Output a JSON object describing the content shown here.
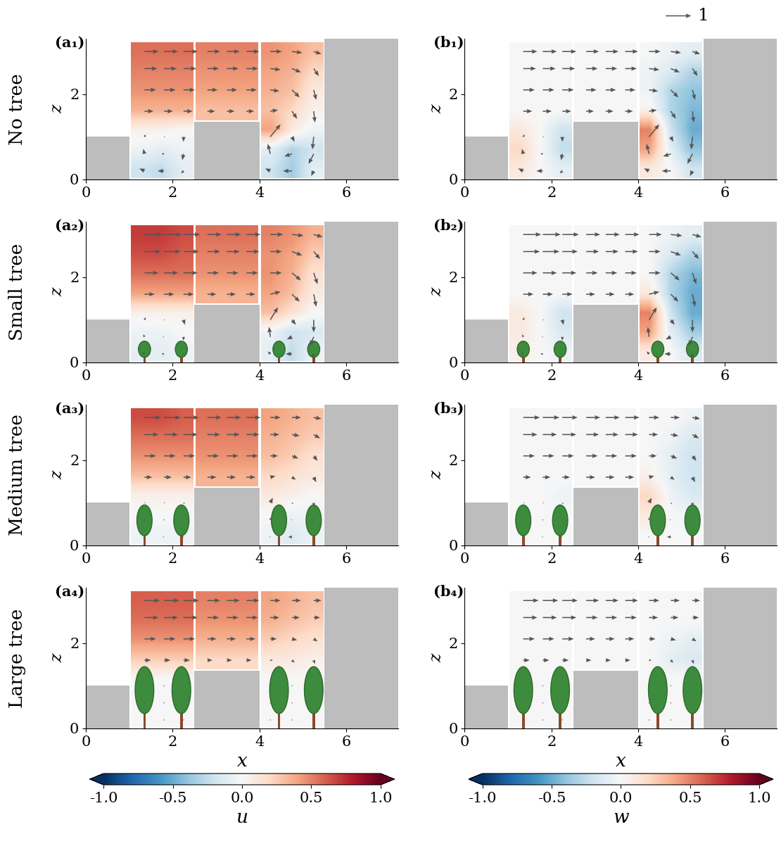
{
  "chart_data": {
    "type": "heatmap",
    "xlim": [
      0,
      7.2
    ],
    "ylim": [
      0,
      3.3
    ],
    "xticks": [
      0,
      2,
      4,
      6
    ],
    "yticks": [
      0,
      2
    ],
    "xlabel": "x",
    "ylabel": "z",
    "x": [
      1.35,
      1.8,
      2.25,
      2.8,
      3.25,
      3.7,
      4.25,
      4.75,
      5.25
    ],
    "z": [
      0.2,
      0.6,
      1.0,
      1.6,
      2.1,
      2.6,
      3.0
    ],
    "buildings": [
      {
        "x": [
          0,
          1.0
        ],
        "height": 1.0
      },
      {
        "x": [
          2.5,
          4.0
        ],
        "height": 1.35
      },
      {
        "x": [
          5.5,
          7.2
        ],
        "height": 3.3
      }
    ],
    "tree_x": [
      1.35,
      2.2,
      4.45,
      5.25
    ],
    "quiver_key": 1,
    "colorbars": [
      {
        "label": "u",
        "range": [
          -1.0,
          1.0
        ],
        "ticks": [
          -1.0,
          -0.5,
          0.0,
          0.5,
          1.0
        ]
      },
      {
        "label": "w",
        "range": [
          -1.0,
          1.0
        ],
        "ticks": [
          -1.0,
          -0.5,
          0.0,
          0.5,
          1.0
        ]
      }
    ],
    "rows": [
      {
        "label": "No tree",
        "panels": [
          "(a₁)",
          "(b₁)"
        ],
        "tree_height": null,
        "u": [
          [
            -0.2,
            -0.25,
            -0.1,
            null,
            null,
            null,
            -0.2,
            -0.35,
            -0.1
          ],
          [
            -0.05,
            -0.1,
            -0.05,
            null,
            null,
            null,
            -0.1,
            -0.3,
            -0.2
          ],
          [
            0.05,
            0.05,
            0.0,
            null,
            null,
            null,
            0.4,
            0.1,
            -0.05
          ],
          [
            0.35,
            0.35,
            0.35,
            0.3,
            0.3,
            0.3,
            0.3,
            0.2,
            0.05
          ],
          [
            0.45,
            0.45,
            0.45,
            0.4,
            0.4,
            0.4,
            0.35,
            0.3,
            0.1
          ],
          [
            0.5,
            0.5,
            0.5,
            0.45,
            0.45,
            0.45,
            0.4,
            0.35,
            0.2
          ],
          [
            0.55,
            0.55,
            0.55,
            0.5,
            0.5,
            0.5,
            0.45,
            0.4,
            0.3
          ]
        ],
        "w": [
          [
            0.1,
            0.0,
            -0.1,
            null,
            null,
            null,
            0.1,
            0.0,
            -0.2
          ],
          [
            0.2,
            0.0,
            -0.25,
            null,
            null,
            null,
            0.4,
            -0.1,
            -0.4
          ],
          [
            0.1,
            0.0,
            -0.2,
            null,
            null,
            null,
            0.5,
            -0.2,
            -0.5
          ],
          [
            0.0,
            0.0,
            0.0,
            0.0,
            0.0,
            0.0,
            0.05,
            -0.3,
            -0.45
          ],
          [
            0.0,
            0.0,
            0.0,
            0.0,
            0.0,
            0.0,
            -0.05,
            -0.3,
            -0.4
          ],
          [
            0.0,
            0.0,
            0.0,
            0.0,
            0.0,
            0.0,
            -0.05,
            -0.15,
            -0.3
          ],
          [
            0.0,
            0.0,
            0.0,
            0.0,
            0.0,
            0.0,
            0.0,
            -0.05,
            -0.1
          ]
        ]
      },
      {
        "label": "Small tree",
        "panels": [
          "(a₂)",
          "(b₂)"
        ],
        "tree_height": 0.5,
        "u": [
          [
            -0.1,
            -0.1,
            -0.05,
            null,
            null,
            null,
            -0.1,
            -0.25,
            -0.05
          ],
          [
            -0.05,
            -0.05,
            0.0,
            null,
            null,
            null,
            -0.05,
            -0.2,
            -0.15
          ],
          [
            0.05,
            0.05,
            0.05,
            null,
            null,
            null,
            0.3,
            0.15,
            0.0
          ],
          [
            0.4,
            0.4,
            0.4,
            0.35,
            0.35,
            0.35,
            0.4,
            0.3,
            0.1
          ],
          [
            0.55,
            0.55,
            0.55,
            0.45,
            0.45,
            0.45,
            0.45,
            0.35,
            0.15
          ],
          [
            0.65,
            0.65,
            0.6,
            0.5,
            0.5,
            0.5,
            0.45,
            0.4,
            0.25
          ],
          [
            0.7,
            0.7,
            0.65,
            0.55,
            0.55,
            0.55,
            0.5,
            0.45,
            0.35
          ]
        ],
        "w": [
          [
            0.05,
            0.0,
            -0.05,
            null,
            null,
            null,
            0.1,
            0.0,
            -0.15
          ],
          [
            0.1,
            0.0,
            -0.15,
            null,
            null,
            null,
            0.4,
            -0.1,
            -0.35
          ],
          [
            0.1,
            0.0,
            -0.2,
            null,
            null,
            null,
            0.5,
            -0.2,
            -0.5
          ],
          [
            0.0,
            0.0,
            0.0,
            0.0,
            0.0,
            0.0,
            0.1,
            -0.3,
            -0.5
          ],
          [
            0.0,
            0.0,
            0.0,
            0.0,
            0.0,
            0.0,
            0.0,
            -0.3,
            -0.45
          ],
          [
            0.0,
            0.0,
            0.0,
            0.0,
            0.0,
            0.0,
            0.0,
            -0.15,
            -0.3
          ],
          [
            0.0,
            0.0,
            0.0,
            0.0,
            0.0,
            0.0,
            0.0,
            -0.05,
            -0.1
          ]
        ]
      },
      {
        "label": "Medium tree",
        "panels": [
          "(a₃)",
          "(b₃)"
        ],
        "tree_height": 0.95,
        "u": [
          [
            -0.05,
            -0.05,
            -0.05,
            null,
            null,
            null,
            -0.05,
            -0.15,
            -0.05
          ],
          [
            0.0,
            0.0,
            0.0,
            null,
            null,
            null,
            0.0,
            -0.05,
            -0.05
          ],
          [
            0.05,
            0.05,
            0.05,
            null,
            null,
            null,
            0.1,
            0.05,
            0.0
          ],
          [
            0.3,
            0.3,
            0.3,
            0.35,
            0.35,
            0.35,
            0.2,
            0.15,
            0.1
          ],
          [
            0.45,
            0.45,
            0.45,
            0.45,
            0.45,
            0.45,
            0.3,
            0.25,
            0.15
          ],
          [
            0.55,
            0.55,
            0.55,
            0.5,
            0.5,
            0.5,
            0.35,
            0.3,
            0.25
          ],
          [
            0.65,
            0.65,
            0.6,
            0.55,
            0.55,
            0.55,
            0.4,
            0.35,
            0.3
          ]
        ],
        "w": [
          [
            0.0,
            0.0,
            0.0,
            null,
            null,
            null,
            0.0,
            0.0,
            0.0
          ],
          [
            0.0,
            0.0,
            0.0,
            null,
            null,
            null,
            0.1,
            0.0,
            -0.05
          ],
          [
            0.0,
            0.0,
            -0.05,
            null,
            null,
            null,
            0.2,
            -0.05,
            -0.15
          ],
          [
            0.0,
            0.0,
            0.0,
            0.0,
            0.0,
            0.0,
            0.05,
            -0.1,
            -0.2
          ],
          [
            0.0,
            0.0,
            0.0,
            0.0,
            0.0,
            0.0,
            0.0,
            -0.1,
            -0.2
          ],
          [
            0.0,
            0.0,
            0.0,
            0.0,
            0.0,
            0.0,
            0.0,
            -0.05,
            -0.15
          ],
          [
            0.0,
            0.0,
            0.0,
            0.0,
            0.0,
            0.0,
            0.0,
            0.0,
            -0.05
          ]
        ]
      },
      {
        "label": "Large tree",
        "panels": [
          "(a₄)",
          "(b₄)"
        ],
        "tree_height": 1.45,
        "u": [
          [
            0.0,
            0.0,
            0.0,
            null,
            null,
            null,
            0.0,
            0.0,
            0.0
          ],
          [
            0.0,
            0.0,
            0.0,
            null,
            null,
            null,
            0.0,
            0.0,
            0.0
          ],
          [
            0.0,
            0.0,
            0.0,
            null,
            null,
            null,
            0.0,
            0.0,
            0.0
          ],
          [
            0.25,
            0.25,
            0.25,
            0.2,
            0.2,
            0.2,
            0.1,
            0.1,
            0.05
          ],
          [
            0.45,
            0.45,
            0.45,
            0.35,
            0.35,
            0.35,
            0.25,
            0.2,
            0.15
          ],
          [
            0.55,
            0.55,
            0.55,
            0.45,
            0.45,
            0.45,
            0.35,
            0.3,
            0.25
          ],
          [
            0.6,
            0.6,
            0.6,
            0.5,
            0.5,
            0.5,
            0.4,
            0.35,
            0.3
          ]
        ],
        "w": [
          [
            0.0,
            0.0,
            0.0,
            null,
            null,
            null,
            0.0,
            0.0,
            0.0
          ],
          [
            0.0,
            0.0,
            0.0,
            null,
            null,
            null,
            0.0,
            0.0,
            0.0
          ],
          [
            0.0,
            0.0,
            0.0,
            null,
            null,
            null,
            0.0,
            0.0,
            0.0
          ],
          [
            0.0,
            0.0,
            0.0,
            0.0,
            0.0,
            0.0,
            0.0,
            -0.1,
            -0.15
          ],
          [
            0.0,
            0.0,
            0.0,
            0.0,
            0.0,
            0.0,
            0.0,
            -0.05,
            -0.1
          ],
          [
            0.0,
            0.0,
            0.0,
            0.0,
            0.0,
            0.0,
            0.0,
            0.0,
            0.0
          ],
          [
            0.0,
            0.0,
            0.0,
            0.0,
            0.0,
            0.0,
            0.0,
            0.0,
            0.0
          ]
        ]
      }
    ]
  }
}
